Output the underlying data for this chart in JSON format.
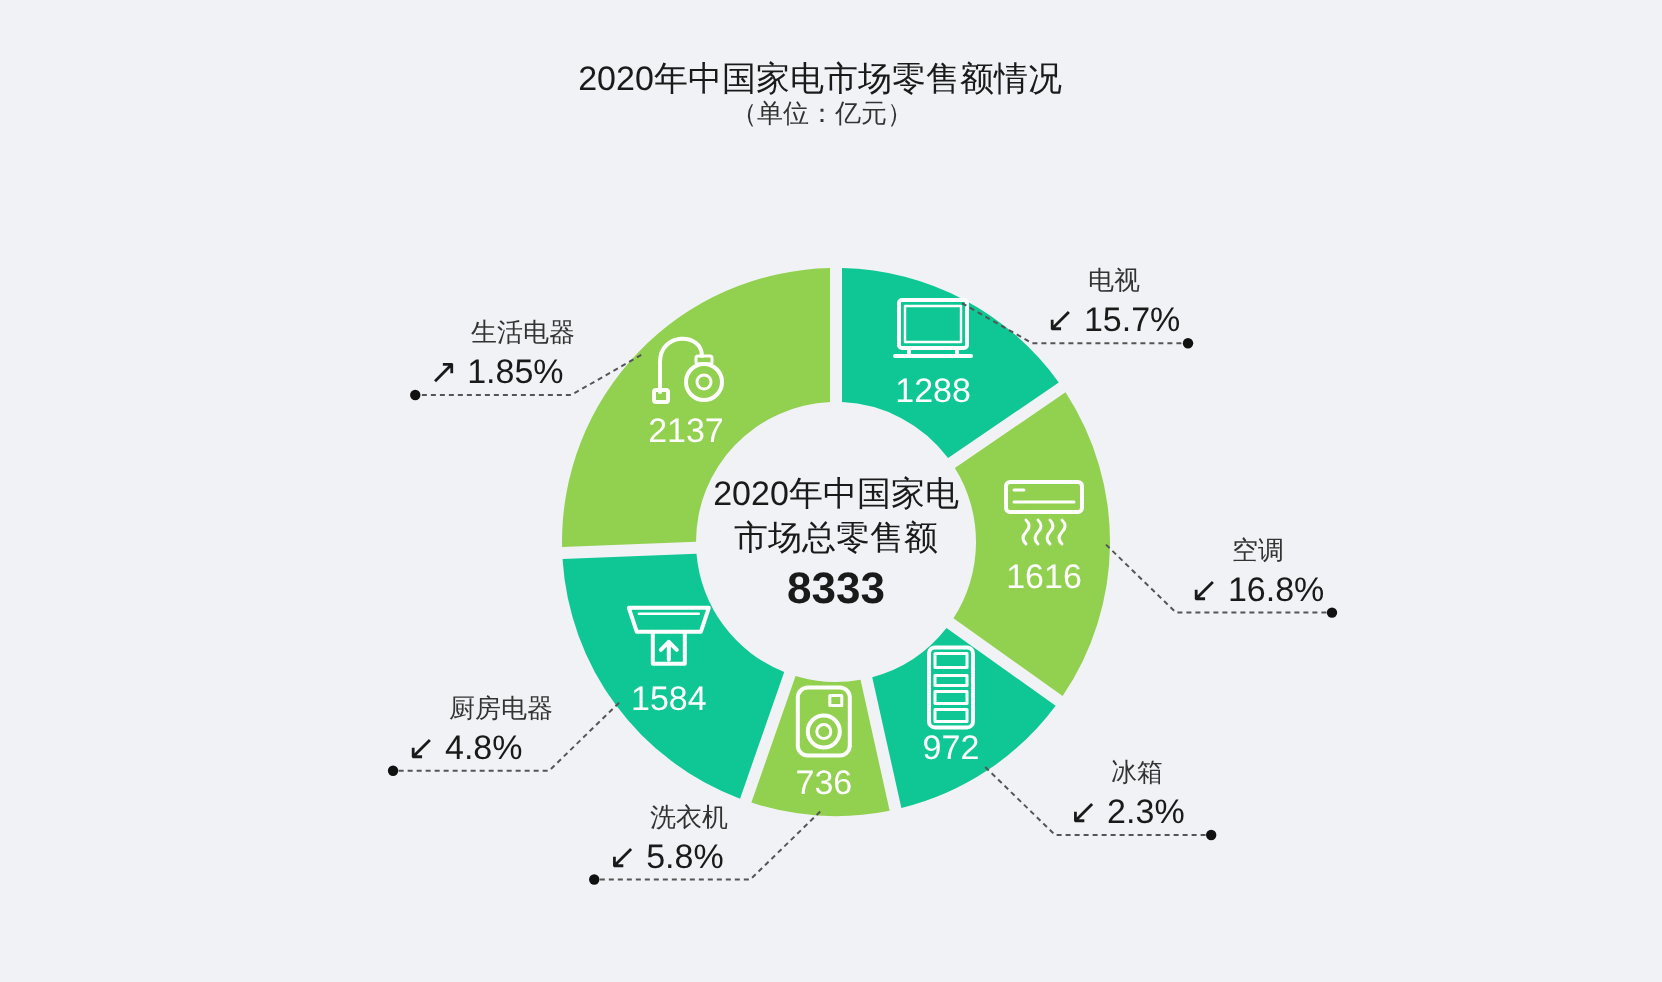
{
  "chart_data": {
    "type": "donut",
    "title": "2020年中国家电市场零售额情况",
    "subtitle": "（单位：亿元）",
    "categories": [
      "电视",
      "空调",
      "冰箱",
      "洗衣机",
      "厨房电器",
      "生活电器"
    ],
    "values": [
      1288,
      1616,
      972,
      736,
      1584,
      2137
    ],
    "colors": [
      "#0ec794",
      "#92d050",
      "#0ec794",
      "#92d050",
      "#0ec794",
      "#92d050"
    ],
    "data_labels": true,
    "annotations": [
      "2020年中国家电市场总零售额",
      "8333",
      {
        "text": "↙ 15.7%",
        "x": "电视"
      },
      {
        "text": "↙ 16.8%",
        "x": "空调"
      },
      {
        "text": "↙ 2.3%",
        "x": "冰箱"
      },
      {
        "text": "↙ 5.8%",
        "x": "洗衣机"
      },
      {
        "text": "↙ 4.8%",
        "x": "厨房电器"
      },
      {
        "text": "↗ 1.85%",
        "x": "生活电器"
      }
    ]
  }
}
